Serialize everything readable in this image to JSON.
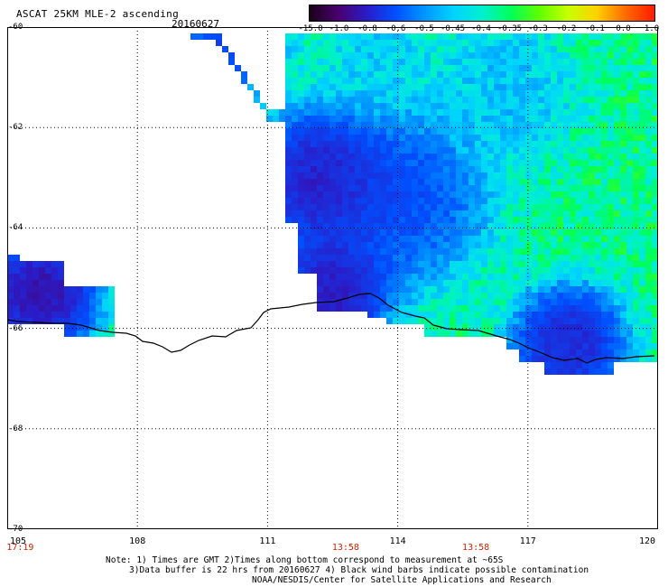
{
  "header": {
    "title": "ASCAT 25KM MLE-2 ascending",
    "date": "20160627"
  },
  "colorbar": {
    "ticks": [
      "-15.0",
      "-1.0",
      "-0.8",
      "-0.6",
      "-0.5",
      "-0.45",
      "-0.4",
      "-0.35",
      "-0.3",
      "-0.2",
      "-0.1",
      "0.0",
      "1.0"
    ],
    "colors": [
      "#1a0018",
      "#4a006e",
      "#2a1cc8",
      "#0050ff",
      "#0096ff",
      "#00d2ff",
      "#00f0d0",
      "#00ff5a",
      "#60ff00",
      "#c8ff00",
      "#ffd000",
      "#ff6a00",
      "#ff1a00"
    ]
  },
  "map": {
    "lat_labels": [
      "-60",
      "-62",
      "-64",
      "-66",
      "-68",
      "-70"
    ],
    "lon_labels": [
      "105",
      "108",
      "111",
      "114",
      "117",
      "120"
    ],
    "pass_times": [
      {
        "label": "17:19",
        "lon": 105.3
      },
      {
        "label": "13:58",
        "lon": 112.8
      },
      {
        "label": "13:58",
        "lon": 115.8
      }
    ]
  },
  "notes": {
    "line1": "Note: 1) Times are GMT 2)Times along bottom correspond to measurement at ~65S",
    "line2": "3)Data buffer is 22 hrs from 20160627 4) Black wind barbs indicate possible contamination",
    "line3": "NOAA/NESDIS/Center for Satellite Applications and Research"
  }
}
